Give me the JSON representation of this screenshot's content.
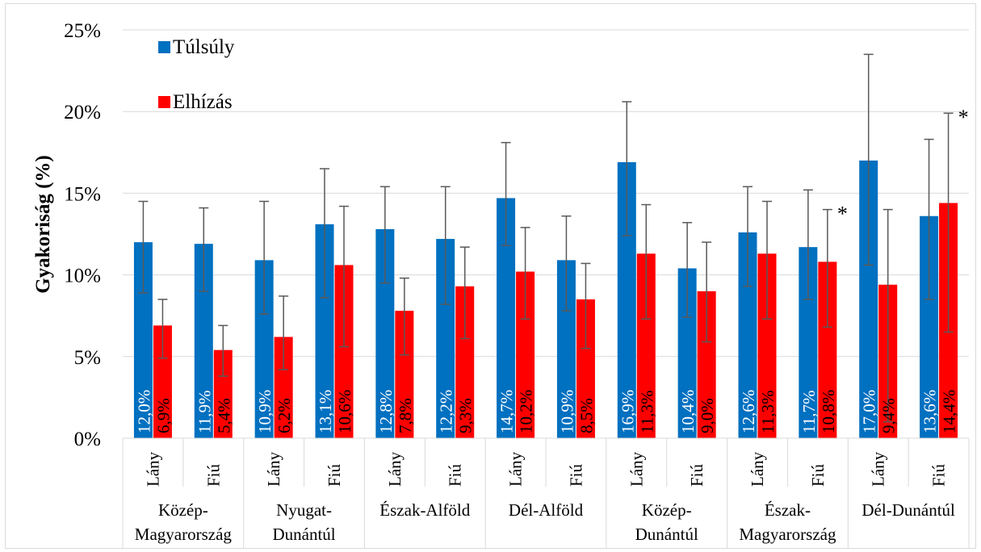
{
  "chart_data": {
    "type": "bar",
    "ylabel": "Gyakoriság (%)",
    "ylim": [
      0,
      25
    ],
    "yticks": [
      "0%",
      "5%",
      "10%",
      "15%",
      "20%",
      "25%"
    ],
    "grid": true,
    "legend_position": "top-left",
    "groups": [
      "Közép-\nMagyarország",
      "Nyugat-\nDunántúl",
      "Észak-Alföld",
      "Dél-Alföld",
      "Közép-\nDunántúl",
      "Észak-\nMagyarország",
      "Dél-Dunántúl"
    ],
    "sub_categories": [
      "Lány",
      "Fiú"
    ],
    "categories": [
      "Közép-Magyarország Lány",
      "Közép-Magyarország Fiú",
      "Nyugat-Dunántúl Lány",
      "Nyugat-Dunántúl Fiú",
      "Észak-Alföld Lány",
      "Észak-Alföld Fiú",
      "Dél-Alföld Lány",
      "Dél-Alföld Fiú",
      "Közép-Dunántúl Lány",
      "Közép-Dunántúl Fiú",
      "Észak-Magyarország Lány",
      "Észak-Magyarország Fiú",
      "Dél-Dunántúl Lány",
      "Dél-Dunántúl Fiú"
    ],
    "series": [
      {
        "name": "Túlsúly",
        "color": "#0070C0",
        "values": [
          12.0,
          11.9,
          10.9,
          13.1,
          12.8,
          12.2,
          14.7,
          10.9,
          16.9,
          10.4,
          12.6,
          11.7,
          17.0,
          13.6
        ],
        "labels": [
          "12,0%",
          "11,9%",
          "10,9%",
          "13,1%",
          "12,8%",
          "12,2%",
          "14,7%",
          "10,9%",
          "16,9%",
          "10,4%",
          "12,6%",
          "11,7%",
          "17,0%",
          "13,6%"
        ],
        "error_low": [
          8.9,
          9.0,
          7.6,
          8.6,
          9.5,
          8.2,
          11.8,
          7.8,
          12.4,
          7.4,
          9.3,
          8.5,
          10.6,
          8.5
        ],
        "error_high": [
          14.5,
          14.1,
          14.5,
          16.5,
          15.4,
          15.4,
          18.1,
          13.6,
          20.6,
          13.2,
          15.4,
          15.2,
          23.5,
          18.3
        ]
      },
      {
        "name": "Elhízás",
        "color": "#FF0000",
        "values": [
          6.9,
          5.4,
          6.2,
          10.6,
          7.8,
          9.3,
          10.2,
          8.5,
          11.3,
          9.0,
          11.3,
          10.8,
          9.4,
          14.4
        ],
        "labels": [
          "6,9%",
          "5,4%",
          "6,2%",
          "10,6%",
          "7,8%",
          "9,3%",
          "10,2%",
          "8,5%",
          "11,3%",
          "9,0%",
          "11,3%",
          "10,8%",
          "9,4%",
          "14,4%"
        ],
        "error_low": [
          4.9,
          3.8,
          4.2,
          5.6,
          5.1,
          6.1,
          7.3,
          5.5,
          7.3,
          5.9,
          7.3,
          6.8,
          1.0,
          6.5
        ],
        "error_high": [
          8.5,
          6.9,
          8.7,
          14.2,
          9.8,
          11.7,
          12.9,
          10.7,
          14.3,
          12.0,
          14.5,
          14.0,
          14.0,
          19.9
        ]
      }
    ],
    "annotations": [
      {
        "category_index": 11,
        "text": "*"
      },
      {
        "category_index": 13,
        "text": "*"
      }
    ]
  }
}
